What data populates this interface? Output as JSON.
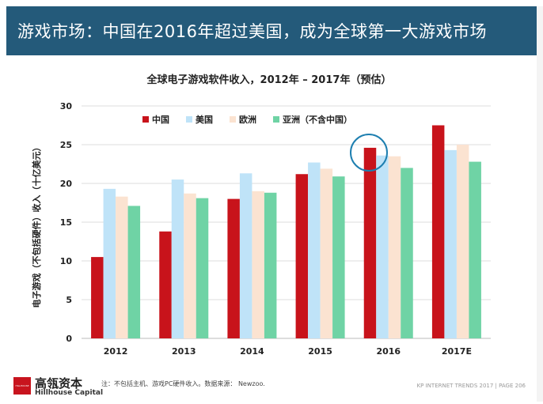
{
  "header": {
    "title": "游戏市场：中国在2016年超过美国，成为全球第一大游戏市场"
  },
  "chart_data": {
    "type": "bar",
    "title": "全球电子游戏软件收入，2012年 – 2017年（预估）",
    "ylabel": "电子游戏（不包括硬件）收入（十亿美元）",
    "xlabel": "",
    "categories": [
      "2012",
      "2013",
      "2014",
      "2015",
      "2016",
      "2017E"
    ],
    "ylim": [
      0,
      30
    ],
    "yticks": [
      "0",
      "5",
      "10",
      "15",
      "20",
      "25",
      "30"
    ],
    "grid": true,
    "legend_position": "top",
    "series": [
      {
        "name": "中国",
        "color": "#c8131b",
        "values": [
          10.5,
          13.8,
          18.0,
          21.2,
          24.6,
          27.5
        ]
      },
      {
        "name": "美国",
        "color": "#bfe3f8",
        "values": [
          19.3,
          20.5,
          21.3,
          22.7,
          23.6,
          24.3
        ]
      },
      {
        "name": "欧洲",
        "color": "#fbe3d1",
        "values": [
          18.3,
          18.7,
          19.0,
          21.9,
          23.5,
          25.0
        ]
      },
      {
        "name": "亚洲（不含中国）",
        "color": "#6fd3a5",
        "values": [
          17.1,
          18.1,
          18.8,
          20.9,
          22.0,
          22.8
        ]
      }
    ],
    "annotation": "circle highlighting 2016 China bar"
  },
  "footer": {
    "logo_text": "HILLHOUSE",
    "logo_cn": "高瓴资本",
    "logo_en": "Hillhouse Capital",
    "footnote": "注：不包括主机、游戏PC硬件收入。数据来源： Newzoo.",
    "page_ref": "KP INTERNET TRENDS 2017  |  PAGE 206"
  }
}
